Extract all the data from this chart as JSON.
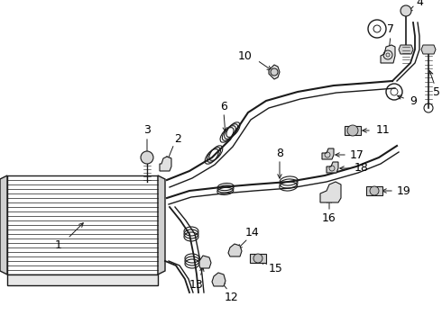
{
  "bg_color": "#ffffff",
  "line_color": "#1a1a1a",
  "figsize": [
    4.9,
    3.6
  ],
  "dpi": 100,
  "label_fs": 8.5,
  "lw": 1.0
}
